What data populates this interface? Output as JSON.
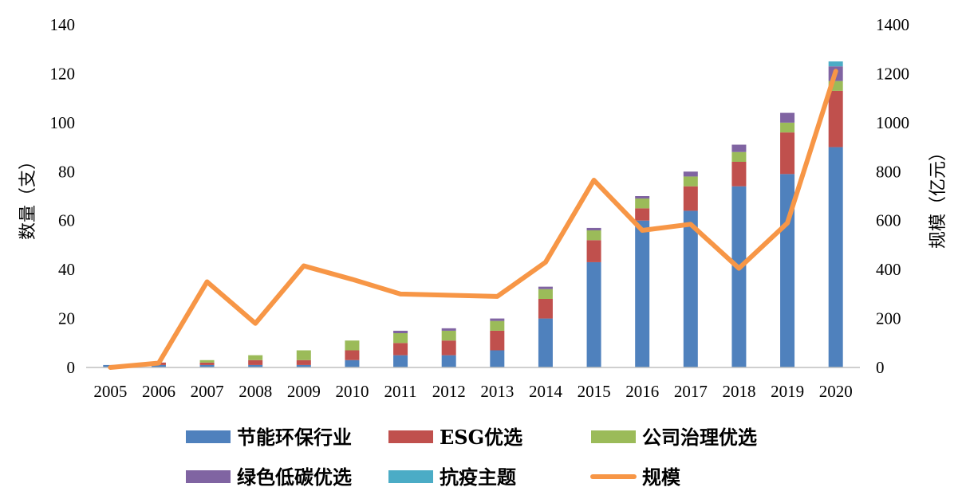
{
  "chart_data": {
    "type": "bar",
    "stacked": true,
    "categories": [
      "2005",
      "2006",
      "2007",
      "2008",
      "2009",
      "2010",
      "2011",
      "2012",
      "2013",
      "2014",
      "2015",
      "2016",
      "2017",
      "2018",
      "2019",
      "2020"
    ],
    "series": [
      {
        "name": "节能环保行业",
        "color": "#4F81BD",
        "values": [
          1,
          1,
          1,
          1,
          1,
          3,
          5,
          5,
          7,
          20,
          43,
          60,
          64,
          74,
          79,
          90
        ]
      },
      {
        "name": "ESG优选",
        "color": "#C0504D",
        "values": [
          0,
          1,
          1,
          2,
          2,
          4,
          5,
          6,
          8,
          8,
          9,
          5,
          10,
          10,
          17,
          23
        ]
      },
      {
        "name": "公司治理优选",
        "color": "#9BBB59",
        "values": [
          0,
          0,
          1,
          2,
          4,
          4,
          4,
          4,
          4,
          4,
          4,
          4,
          4,
          4,
          4,
          4
        ]
      },
      {
        "name": "绿色低碳优选",
        "color": "#8064A2",
        "values": [
          0,
          0,
          0,
          0,
          0,
          0,
          1,
          1,
          1,
          1,
          1,
          1,
          2,
          3,
          4,
          6
        ]
      },
      {
        "name": "抗疫主题",
        "color": "#4BACC6",
        "values": [
          0,
          0,
          0,
          0,
          0,
          0,
          0,
          0,
          0,
          0,
          0,
          0,
          0,
          0,
          0,
          2
        ]
      }
    ],
    "line_series": {
      "name": "规模",
      "color": "#F79646",
      "axis": "right",
      "values": [
        0,
        18,
        350,
        180,
        415,
        360,
        300,
        295,
        290,
        430,
        765,
        560,
        585,
        405,
        590,
        1210
      ]
    },
    "ylabel": "数量（支）",
    "ylabel_right": "规模（亿元）",
    "ylim": [
      0,
      140
    ],
    "ylim_right": [
      0,
      1400
    ],
    "yticks": [
      0,
      20,
      40,
      60,
      80,
      100,
      120,
      140
    ],
    "yticks_right": [
      0,
      200,
      400,
      600,
      800,
      1000,
      1200,
      1400
    ],
    "grid": false,
    "legend_position": "bottom"
  }
}
